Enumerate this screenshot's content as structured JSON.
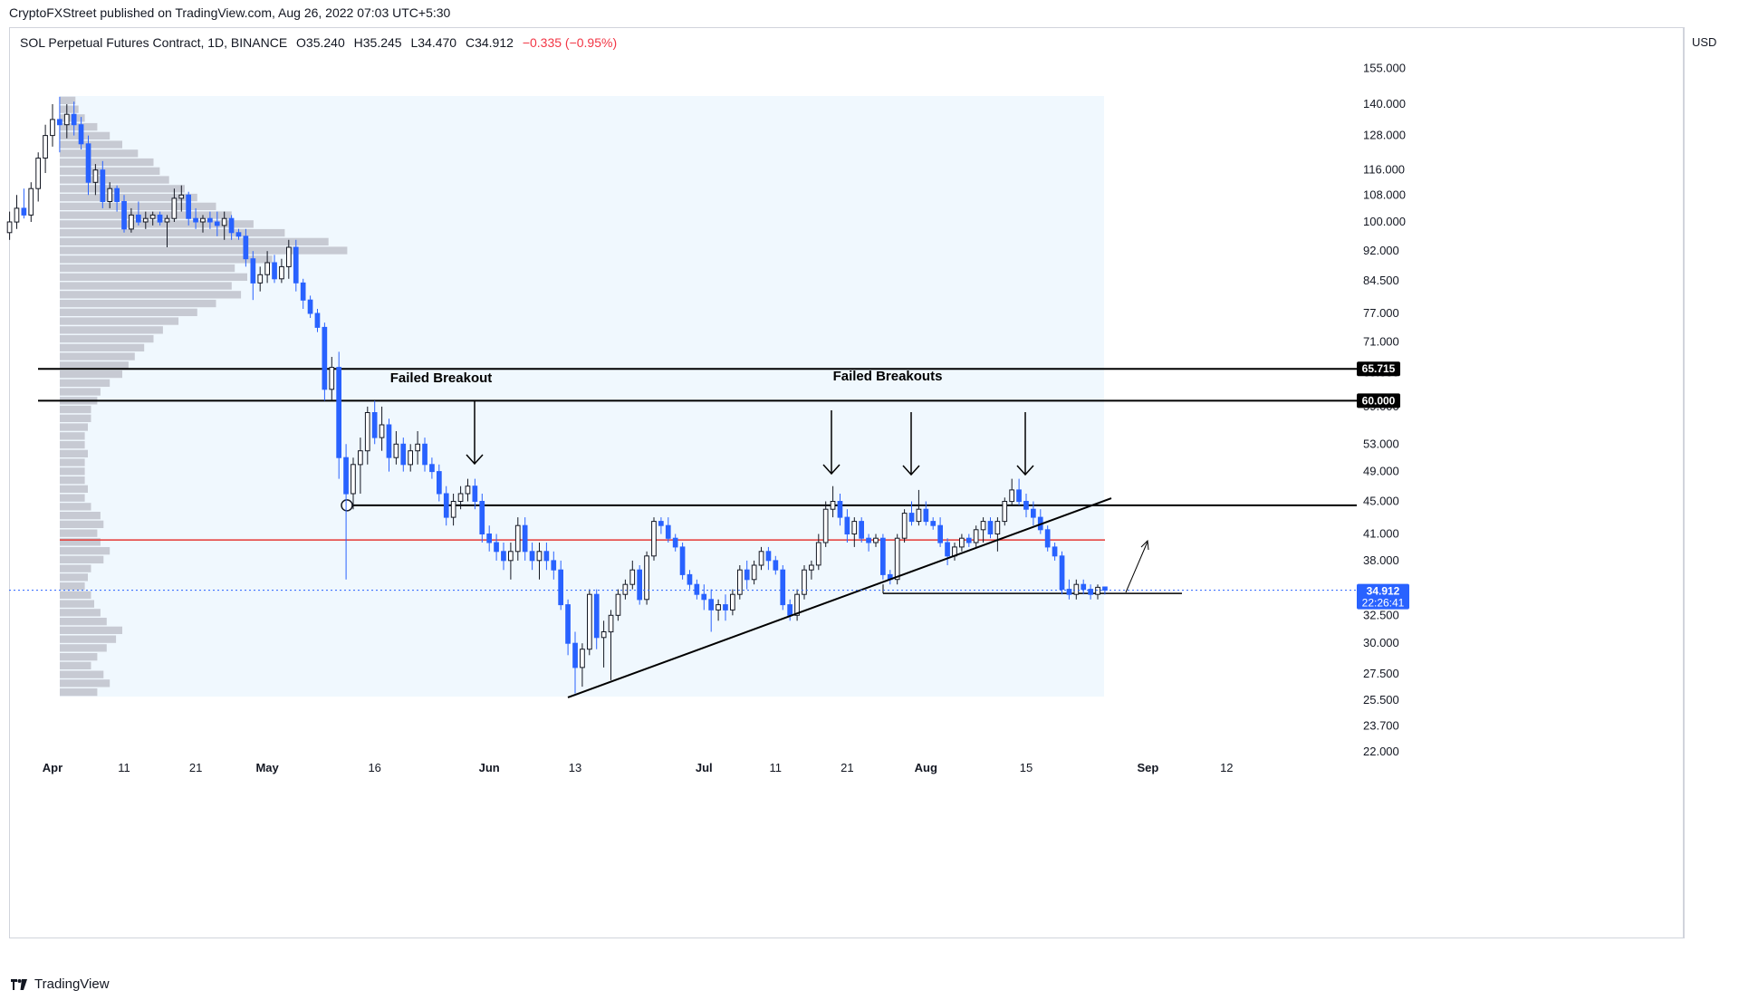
{
  "header": {
    "published": "CryptoFXStreet published on TradingView.com, Aug 26, 2022 07:03 UTC+5:30"
  },
  "legend": {
    "symbol": "SOL Perpetual Futures Contract, 1D, BINANCE",
    "open": "O35.240",
    "high": "H35.245",
    "low": "L34.470",
    "close": "C34.912",
    "change": "−0.335 (−0.95%)"
  },
  "currency": "USD",
  "footer": {
    "brand": "TradingView"
  },
  "colors": {
    "up": "#ffffff",
    "down": "#2962ff",
    "wick": "#131722",
    "resistance": "#000000",
    "poc": "#e53935",
    "value_area": "#e3f2fd",
    "volume_profile": "#c7cad3",
    "price_tag": "#2962ff"
  },
  "chart_data": {
    "type": "candlestick",
    "title": "",
    "xlabel": "",
    "ylabel": "USD",
    "scale": "log",
    "y_ticks": [
      "155.000",
      "140.000",
      "128.000",
      "116.000",
      "108.000",
      "100.000",
      "92.000",
      "84.500",
      "77.000",
      "71.000",
      "65.000",
      "59.000",
      "53.000",
      "49.000",
      "45.000",
      "41.000",
      "38.000",
      "35.000",
      "32.500",
      "30.000",
      "27.500",
      "25.500",
      "23.700",
      "22.000"
    ],
    "x_ticks": [
      {
        "label": "Apr",
        "bold": true,
        "date": "2022-04-01"
      },
      {
        "label": "11",
        "bold": false,
        "date": "2022-04-11"
      },
      {
        "label": "21",
        "bold": false,
        "date": "2022-04-21"
      },
      {
        "label": "May",
        "bold": true,
        "date": "2022-05-01"
      },
      {
        "label": "16",
        "bold": false,
        "date": "2022-05-16"
      },
      {
        "label": "Jun",
        "bold": true,
        "date": "2022-06-01"
      },
      {
        "label": "13",
        "bold": false,
        "date": "2022-06-13"
      },
      {
        "label": "Jul",
        "bold": true,
        "date": "2022-07-01"
      },
      {
        "label": "11",
        "bold": false,
        "date": "2022-07-11"
      },
      {
        "label": "21",
        "bold": false,
        "date": "2022-07-21"
      },
      {
        "label": "Aug",
        "bold": true,
        "date": "2022-08-01"
      },
      {
        "label": "15",
        "bold": false,
        "date": "2022-08-15"
      },
      {
        "label": "Sep",
        "bold": true,
        "date": "2022-09-01"
      },
      {
        "label": "12",
        "bold": false,
        "date": "2022-09-12"
      }
    ],
    "candles_start_date": "2022-03-26",
    "candles": [
      {
        "o": 97,
        "h": 103,
        "l": 95,
        "c": 100
      },
      {
        "o": 100,
        "h": 108,
        "l": 98,
        "c": 104
      },
      {
        "o": 104,
        "h": 110,
        "l": 101,
        "c": 102
      },
      {
        "o": 102,
        "h": 112,
        "l": 100,
        "c": 110
      },
      {
        "o": 110,
        "h": 122,
        "l": 106,
        "c": 120
      },
      {
        "o": 120,
        "h": 132,
        "l": 115,
        "c": 128
      },
      {
        "o": 128,
        "h": 140,
        "l": 124,
        "c": 134
      },
      {
        "o": 134,
        "h": 143,
        "l": 122,
        "c": 132
      },
      {
        "o": 132,
        "h": 140,
        "l": 127,
        "c": 136
      },
      {
        "o": 136,
        "h": 141,
        "l": 128,
        "c": 132
      },
      {
        "o": 132,
        "h": 135,
        "l": 123,
        "c": 125
      },
      {
        "o": 125,
        "h": 128,
        "l": 108,
        "c": 112
      },
      {
        "o": 112,
        "h": 118,
        "l": 108,
        "c": 116
      },
      {
        "o": 116,
        "h": 119,
        "l": 104,
        "c": 106
      },
      {
        "o": 106,
        "h": 112,
        "l": 104,
        "c": 110
      },
      {
        "o": 110,
        "h": 111,
        "l": 103,
        "c": 106
      },
      {
        "o": 106,
        "h": 108,
        "l": 97,
        "c": 98
      },
      {
        "o": 98,
        "h": 104,
        "l": 97,
        "c": 102
      },
      {
        "o": 102,
        "h": 106,
        "l": 99,
        "c": 100
      },
      {
        "o": 100,
        "h": 103,
        "l": 98,
        "c": 101
      },
      {
        "o": 101,
        "h": 103,
        "l": 99,
        "c": 102
      },
      {
        "o": 102,
        "h": 103,
        "l": 99,
        "c": 100
      },
      {
        "o": 100,
        "h": 102,
        "l": 93,
        "c": 101
      },
      {
        "o": 101,
        "h": 110,
        "l": 100,
        "c": 107
      },
      {
        "o": 107,
        "h": 111,
        "l": 103,
        "c": 108
      },
      {
        "o": 108,
        "h": 109,
        "l": 99,
        "c": 101
      },
      {
        "o": 101,
        "h": 104,
        "l": 98,
        "c": 100
      },
      {
        "o": 100,
        "h": 102,
        "l": 97,
        "c": 101
      },
      {
        "o": 101,
        "h": 103,
        "l": 98,
        "c": 100
      },
      {
        "o": 100,
        "h": 103,
        "l": 96,
        "c": 99
      },
      {
        "o": 99,
        "h": 103,
        "l": 95,
        "c": 101
      },
      {
        "o": 101,
        "h": 102,
        "l": 95,
        "c": 97
      },
      {
        "o": 97,
        "h": 98,
        "l": 95,
        "c": 96
      },
      {
        "o": 96,
        "h": 98,
        "l": 88,
        "c": 90
      },
      {
        "o": 90,
        "h": 92,
        "l": 80,
        "c": 84
      },
      {
        "o": 84,
        "h": 88,
        "l": 82,
        "c": 86
      },
      {
        "o": 86,
        "h": 92,
        "l": 84,
        "c": 89
      },
      {
        "o": 89,
        "h": 91,
        "l": 84,
        "c": 85
      },
      {
        "o": 85,
        "h": 90,
        "l": 84,
        "c": 88
      },
      {
        "o": 88,
        "h": 95,
        "l": 85,
        "c": 93
      },
      {
        "o": 93,
        "h": 95,
        "l": 82,
        "c": 84
      },
      {
        "o": 84,
        "h": 85,
        "l": 78,
        "c": 80
      },
      {
        "o": 80,
        "h": 81,
        "l": 76,
        "c": 77
      },
      {
        "o": 77,
        "h": 78,
        "l": 73,
        "c": 74
      },
      {
        "o": 74,
        "h": 75,
        "l": 60,
        "c": 62
      },
      {
        "o": 62,
        "h": 68,
        "l": 60,
        "c": 66
      },
      {
        "o": 66,
        "h": 69,
        "l": 48,
        "c": 51
      },
      {
        "o": 51,
        "h": 53,
        "l": 36,
        "c": 46
      },
      {
        "o": 46,
        "h": 51,
        "l": 44,
        "c": 50
      },
      {
        "o": 50,
        "h": 54,
        "l": 46,
        "c": 52
      },
      {
        "o": 52,
        "h": 59,
        "l": 50,
        "c": 58
      },
      {
        "o": 58,
        "h": 60,
        "l": 53,
        "c": 54
      },
      {
        "o": 54,
        "h": 59,
        "l": 52,
        "c": 56
      },
      {
        "o": 56,
        "h": 57,
        "l": 49,
        "c": 51
      },
      {
        "o": 51,
        "h": 55,
        "l": 50,
        "c": 53
      },
      {
        "o": 53,
        "h": 54,
        "l": 49,
        "c": 50
      },
      {
        "o": 50,
        "h": 53,
        "l": 49,
        "c": 52
      },
      {
        "o": 52,
        "h": 55,
        "l": 50,
        "c": 53
      },
      {
        "o": 53,
        "h": 54,
        "l": 49,
        "c": 50
      },
      {
        "o": 50,
        "h": 51,
        "l": 48,
        "c": 49
      },
      {
        "o": 49,
        "h": 50,
        "l": 45,
        "c": 46
      },
      {
        "o": 46,
        "h": 47,
        "l": 42,
        "c": 43
      },
      {
        "o": 43,
        "h": 46,
        "l": 42,
        "c": 45
      },
      {
        "o": 45,
        "h": 47,
        "l": 44,
        "c": 46
      },
      {
        "o": 46,
        "h": 48,
        "l": 45,
        "c": 47
      },
      {
        "o": 47,
        "h": 48,
        "l": 44,
        "c": 45
      },
      {
        "o": 45,
        "h": 46,
        "l": 40,
        "c": 41
      },
      {
        "o": 41,
        "h": 42,
        "l": 39,
        "c": 40
      },
      {
        "o": 40,
        "h": 41,
        "l": 38,
        "c": 39
      },
      {
        "o": 39,
        "h": 40,
        "l": 37,
        "c": 38
      },
      {
        "o": 38,
        "h": 40,
        "l": 36,
        "c": 39
      },
      {
        "o": 39,
        "h": 43,
        "l": 38,
        "c": 42
      },
      {
        "o": 42,
        "h": 43,
        "l": 38,
        "c": 39
      },
      {
        "o": 39,
        "h": 40,
        "l": 37,
        "c": 38
      },
      {
        "o": 38,
        "h": 40,
        "l": 36,
        "c": 39
      },
      {
        "o": 39,
        "h": 40,
        "l": 37,
        "c": 38
      },
      {
        "o": 38,
        "h": 39,
        "l": 36,
        "c": 37
      },
      {
        "o": 37,
        "h": 38,
        "l": 33,
        "c": 33.5
      },
      {
        "o": 33.5,
        "h": 34,
        "l": 29,
        "c": 30
      },
      {
        "o": 30,
        "h": 31,
        "l": 26,
        "c": 28
      },
      {
        "o": 28,
        "h": 30,
        "l": 26.5,
        "c": 29.5
      },
      {
        "o": 29.5,
        "h": 35,
        "l": 29,
        "c": 34.5
      },
      {
        "o": 34.5,
        "h": 35,
        "l": 29.5,
        "c": 30.5
      },
      {
        "o": 30.5,
        "h": 32,
        "l": 28,
        "c": 31
      },
      {
        "o": 31,
        "h": 33,
        "l": 27,
        "c": 32.5
      },
      {
        "o": 32.5,
        "h": 35,
        "l": 32,
        "c": 34.5
      },
      {
        "o": 34.5,
        "h": 36,
        "l": 34,
        "c": 35.5
      },
      {
        "o": 35.5,
        "h": 38,
        "l": 35,
        "c": 37
      },
      {
        "o": 37,
        "h": 37.5,
        "l": 33.5,
        "c": 34
      },
      {
        "o": 34,
        "h": 39,
        "l": 33.5,
        "c": 38.5
      },
      {
        "o": 38.5,
        "h": 43,
        "l": 38,
        "c": 42.5
      },
      {
        "o": 42.5,
        "h": 43,
        "l": 41,
        "c": 42
      },
      {
        "o": 42,
        "h": 43,
        "l": 40,
        "c": 40.5
      },
      {
        "o": 40.5,
        "h": 41,
        "l": 39,
        "c": 39.5
      },
      {
        "o": 39.5,
        "h": 40,
        "l": 36,
        "c": 36.5
      },
      {
        "o": 36.5,
        "h": 37,
        "l": 35,
        "c": 35.5
      },
      {
        "o": 35.5,
        "h": 36,
        "l": 34,
        "c": 34.5
      },
      {
        "o": 34.5,
        "h": 35.5,
        "l": 33,
        "c": 34
      },
      {
        "o": 34,
        "h": 35,
        "l": 31,
        "c": 33
      },
      {
        "o": 33,
        "h": 34,
        "l": 32,
        "c": 33.5
      },
      {
        "o": 33.5,
        "h": 34.5,
        "l": 32,
        "c": 33
      },
      {
        "o": 33,
        "h": 35,
        "l": 32.5,
        "c": 34.5
      },
      {
        "o": 34.5,
        "h": 37.5,
        "l": 34,
        "c": 37
      },
      {
        "o": 37,
        "h": 38,
        "l": 35,
        "c": 36
      },
      {
        "o": 36,
        "h": 38,
        "l": 35.5,
        "c": 37.5
      },
      {
        "o": 37.5,
        "h": 39.5,
        "l": 37,
        "c": 39
      },
      {
        "o": 39,
        "h": 39.5,
        "l": 37,
        "c": 38
      },
      {
        "o": 38,
        "h": 38.5,
        "l": 36.5,
        "c": 37
      },
      {
        "o": 37,
        "h": 37.5,
        "l": 33,
        "c": 33.5
      },
      {
        "o": 33.5,
        "h": 34,
        "l": 32,
        "c": 32.5
      },
      {
        "o": 32.5,
        "h": 35,
        "l": 32,
        "c": 34.5
      },
      {
        "o": 34.5,
        "h": 37.5,
        "l": 34,
        "c": 37
      },
      {
        "o": 37,
        "h": 38,
        "l": 36,
        "c": 37.5
      },
      {
        "o": 37.5,
        "h": 41,
        "l": 37,
        "c": 40
      },
      {
        "o": 40,
        "h": 45,
        "l": 39.5,
        "c": 44
      },
      {
        "o": 44,
        "h": 47,
        "l": 43,
        "c": 45
      },
      {
        "o": 45,
        "h": 46,
        "l": 42,
        "c": 43
      },
      {
        "o": 43,
        "h": 44,
        "l": 40,
        "c": 41
      },
      {
        "o": 41,
        "h": 43,
        "l": 39.5,
        "c": 42.5
      },
      {
        "o": 42.5,
        "h": 43,
        "l": 40,
        "c": 40.5
      },
      {
        "o": 40.5,
        "h": 41,
        "l": 39,
        "c": 40
      },
      {
        "o": 40,
        "h": 41,
        "l": 39.5,
        "c": 40.5
      },
      {
        "o": 40.5,
        "h": 41,
        "l": 36,
        "c": 36.5
      },
      {
        "o": 36.5,
        "h": 37,
        "l": 35.5,
        "c": 36
      },
      {
        "o": 36,
        "h": 41,
        "l": 35.5,
        "c": 40.5
      },
      {
        "o": 40.5,
        "h": 44,
        "l": 40,
        "c": 43.5
      },
      {
        "o": 43.5,
        "h": 45,
        "l": 42,
        "c": 42.5
      },
      {
        "o": 42.5,
        "h": 46.5,
        "l": 42,
        "c": 44
      },
      {
        "o": 44,
        "h": 45,
        "l": 42,
        "c": 42.5
      },
      {
        "o": 42.5,
        "h": 43,
        "l": 41.5,
        "c": 42
      },
      {
        "o": 42,
        "h": 43,
        "l": 39.5,
        "c": 40
      },
      {
        "o": 40,
        "h": 40.5,
        "l": 37.5,
        "c": 38.5
      },
      {
        "o": 38.5,
        "h": 40,
        "l": 38,
        "c": 39.5
      },
      {
        "o": 39.5,
        "h": 41,
        "l": 39,
        "c": 40.5
      },
      {
        "o": 40.5,
        "h": 41,
        "l": 39.5,
        "c": 40
      },
      {
        "o": 40,
        "h": 42,
        "l": 39.5,
        "c": 41.5
      },
      {
        "o": 41.5,
        "h": 43,
        "l": 40,
        "c": 42.5
      },
      {
        "o": 42.5,
        "h": 43,
        "l": 40.5,
        "c": 41
      },
      {
        "o": 41,
        "h": 43,
        "l": 39,
        "c": 42.5
      },
      {
        "o": 42.5,
        "h": 45.5,
        "l": 42,
        "c": 45
      },
      {
        "o": 45,
        "h": 48,
        "l": 44.5,
        "c": 46.5
      },
      {
        "o": 46.5,
        "h": 48,
        "l": 44.5,
        "c": 45
      },
      {
        "o": 45,
        "h": 46,
        "l": 43,
        "c": 44
      },
      {
        "o": 44,
        "h": 45,
        "l": 42,
        "c": 43
      },
      {
        "o": 43,
        "h": 44,
        "l": 41,
        "c": 41.5
      },
      {
        "o": 41.5,
        "h": 42,
        "l": 39,
        "c": 39.5
      },
      {
        "o": 39.5,
        "h": 40,
        "l": 38,
        "c": 38.5
      },
      {
        "o": 38.5,
        "h": 39,
        "l": 34.5,
        "c": 35
      },
      {
        "o": 35,
        "h": 36,
        "l": 34,
        "c": 34.5
      },
      {
        "o": 34.5,
        "h": 36,
        "l": 34,
        "c": 35.5
      },
      {
        "o": 35.5,
        "h": 36,
        "l": 34.5,
        "c": 35
      },
      {
        "o": 35,
        "h": 35.5,
        "l": 34,
        "c": 34.5
      },
      {
        "o": 34.5,
        "h": 35.5,
        "l": 34,
        "c": 35.2
      },
      {
        "o": 35.24,
        "h": 35.245,
        "l": 34.47,
        "c": 34.912
      }
    ],
    "horizontal_lines": [
      {
        "price": 65.715,
        "label": "65.715",
        "color": "#000000"
      },
      {
        "price": 60.0,
        "label": "60.000",
        "color": "#000000"
      },
      {
        "price": 44.5,
        "color": "#000000"
      },
      {
        "price": 40.3,
        "color": "#e53935"
      },
      {
        "price": 34.6,
        "color": "#000000"
      }
    ],
    "trendline": {
      "from_price": 25.7,
      "to_price": 45.4
    },
    "annotations": [
      {
        "text": "Failed Breakout"
      },
      {
        "text": "Failed Breakouts"
      }
    ],
    "last_price": {
      "value": "34.912",
      "countdown": "22:26:41"
    },
    "volume_profile_relative": [
      0.05,
      0.06,
      0.08,
      0.12,
      0.16,
      0.2,
      0.25,
      0.3,
      0.32,
      0.35,
      0.4,
      0.44,
      0.5,
      0.55,
      0.62,
      0.72,
      0.86,
      0.92,
      0.68,
      0.56,
      0.6,
      0.55,
      0.58,
      0.5,
      0.44,
      0.38,
      0.33,
      0.3,
      0.27,
      0.24,
      0.22,
      0.2,
      0.16,
      0.13,
      0.12,
      0.1,
      0.1,
      0.09,
      0.08,
      0.08,
      0.09,
      0.08,
      0.08,
      0.08,
      0.09,
      0.08,
      0.1,
      0.13,
      0.14,
      0.12,
      0.13,
      0.16,
      0.14,
      0.1,
      0.09,
      0.08,
      0.1,
      0.11,
      0.13,
      0.15,
      0.2,
      0.18,
      0.15,
      0.12,
      0.1,
      0.14,
      0.16,
      0.12
    ]
  }
}
